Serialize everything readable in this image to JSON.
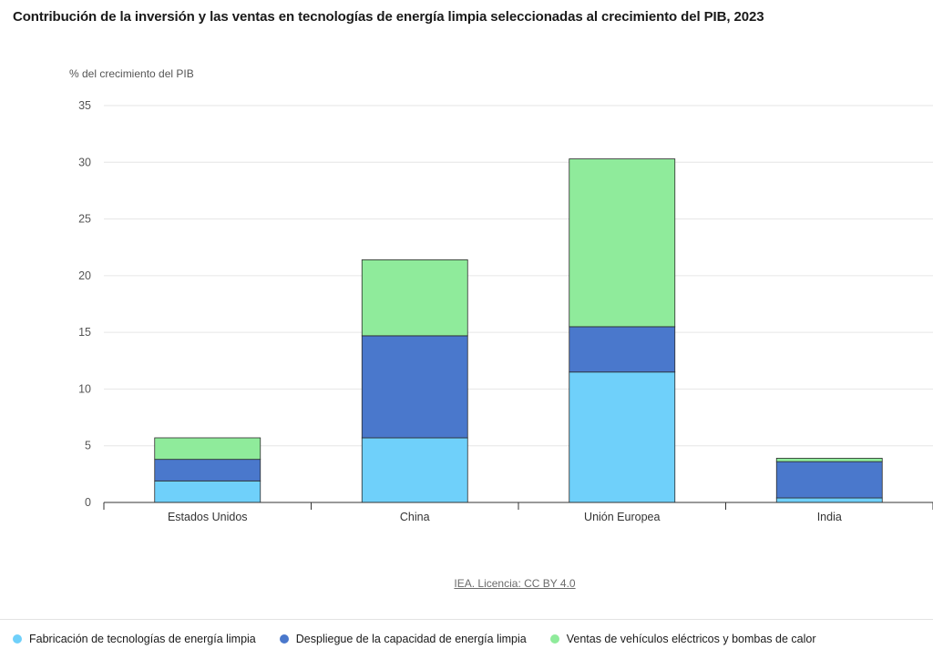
{
  "header": {
    "title": "Contribución de la inversión y las ventas en tecnologías de energía limpia seleccionadas al crecimiento del PIB, 2023"
  },
  "source": {
    "label": "IEA. Licencia: CC BY 4.0"
  },
  "chart_data": {
    "type": "bar",
    "stacked": true,
    "ylabel": "% del crecimiento del PIB",
    "ylim": [
      0,
      35
    ],
    "yticks": [
      0,
      5,
      10,
      15,
      20,
      25,
      30,
      35
    ],
    "grid": true,
    "legend_position": "bottom-left",
    "categories": [
      "Estados Unidos",
      "China",
      "Unión Europea",
      "India"
    ],
    "series": [
      {
        "name": "Fabricación de tecnologías de energía limpia",
        "color": "#6fd0fa",
        "values": [
          1.9,
          5.7,
          11.5,
          0.4
        ]
      },
      {
        "name": "Despliegue de la capacidad de energía limpia",
        "color": "#4a78cc",
        "values": [
          1.9,
          9.0,
          4.0,
          3.2
        ]
      },
      {
        "name": "Ventas de vehículos eléctricos y bombas de calor",
        "color": "#8feb9b",
        "values": [
          1.9,
          6.7,
          14.8,
          0.3
        ]
      }
    ]
  }
}
